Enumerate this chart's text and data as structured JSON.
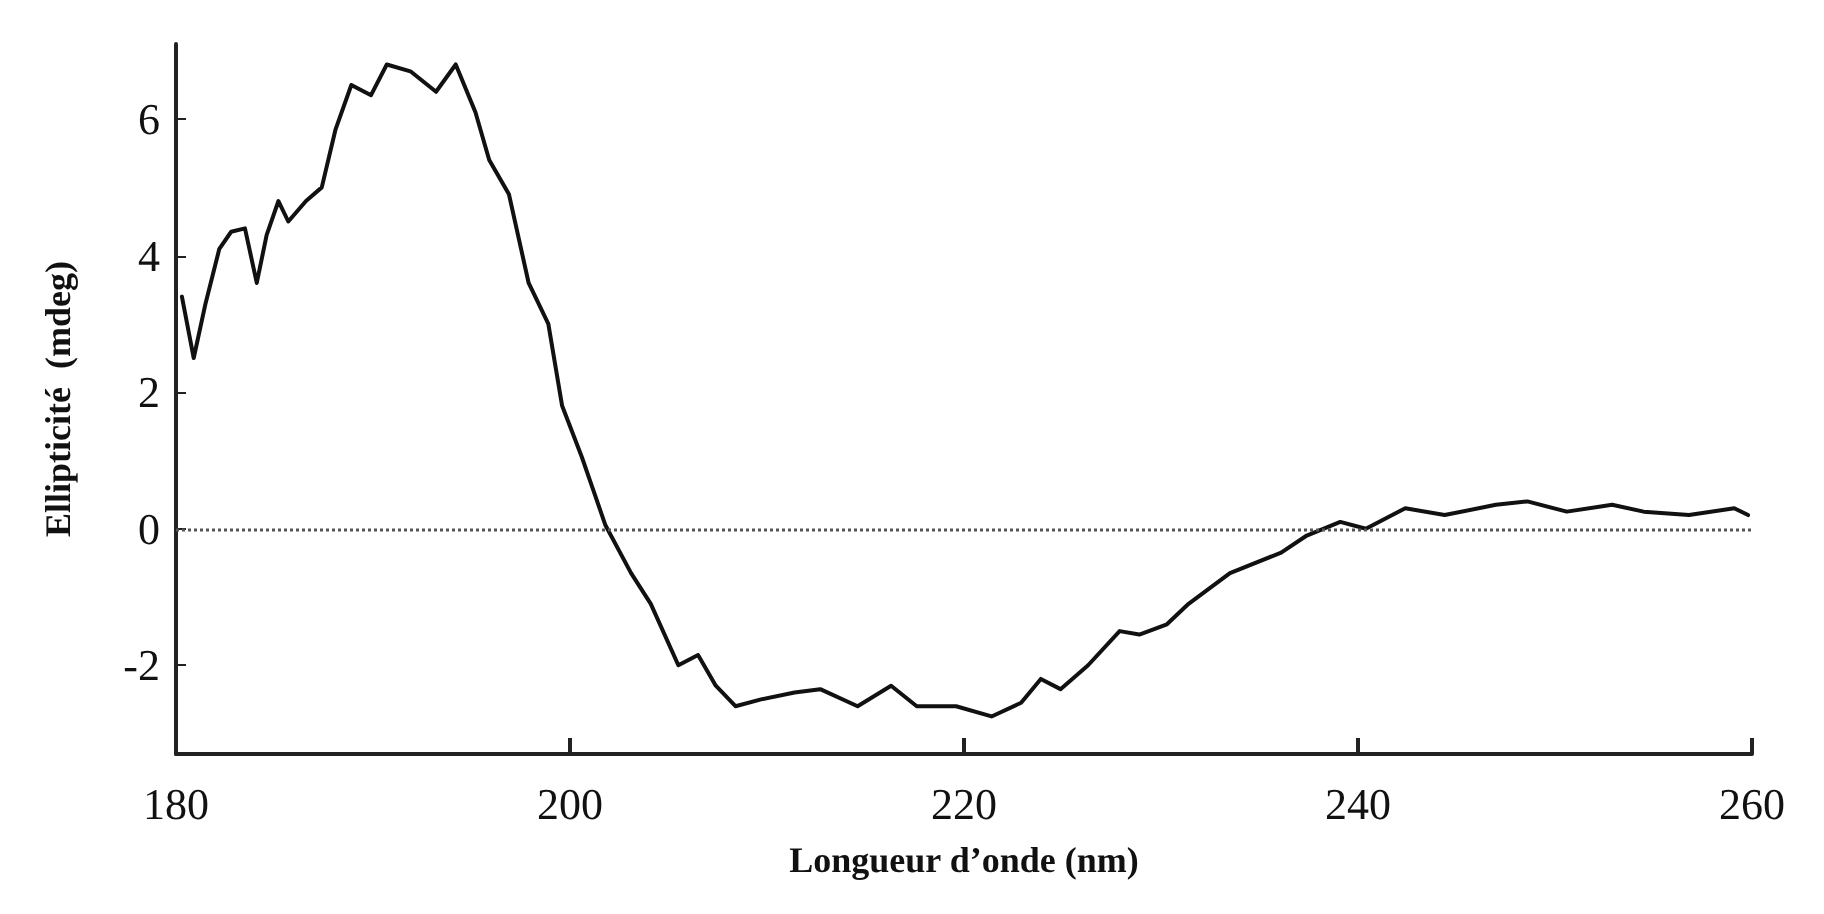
{
  "chart_data": {
    "type": "line",
    "xlabel": "Longueur d’onde (nm)",
    "ylabel": "Ellipticité  (mdeg)",
    "xlim": [
      180,
      260
    ],
    "xticks": [
      180,
      200,
      220,
      240,
      260
    ],
    "ylim": [
      -3.3,
      7.1
    ],
    "yticks": [
      -2,
      0,
      2,
      4,
      6
    ],
    "grid": false,
    "marker": "none",
    "line_style": "solid",
    "ref_lines": [
      {
        "axis": "y",
        "value": 0,
        "color": "#555555",
        "line_style": "dotted"
      }
    ],
    "series": [
      {
        "color": "#111111",
        "x": [
          180.3,
          180.9,
          181.5,
          182.2,
          182.8,
          183.5,
          184.1,
          184.6,
          185.2,
          185.7,
          186.6,
          187.4,
          188.1,
          188.9,
          189.9,
          190.7,
          191.9,
          193.2,
          194.2,
          195.2,
          195.9,
          196.9,
          197.9,
          198.9,
          199.6,
          200.6,
          201.2,
          201.8,
          203.1,
          204.1,
          205.5,
          206.5,
          207.4,
          208.4,
          209.7,
          211.4,
          212.7,
          214.6,
          216.3,
          217.6,
          219.6,
          221.4,
          222.9,
          223.9,
          224.9,
          226.3,
          227.9,
          228.9,
          230.3,
          231.4,
          233.5,
          236.1,
          237.4,
          239.1,
          240.4,
          242.4,
          244.4,
          247.0,
          248.6,
          250.6,
          252.9,
          254.5,
          256.8,
          259.1,
          259.8
        ],
        "values": [
          3.4,
          2.5,
          3.3,
          4.1,
          4.35,
          4.4,
          3.6,
          4.3,
          4.8,
          4.5,
          4.8,
          5.0,
          5.85,
          6.5,
          6.35,
          6.8,
          6.7,
          6.4,
          6.8,
          6.1,
          5.4,
          4.9,
          3.6,
          3.0,
          1.8,
          1.05,
          0.55,
          0.05,
          -0.65,
          -1.1,
          -2.0,
          -1.85,
          -2.3,
          -2.6,
          -2.5,
          -2.4,
          -2.35,
          -2.6,
          -2.3,
          -2.6,
          -2.6,
          -2.75,
          -2.55,
          -2.2,
          -2.35,
          -2.0,
          -1.5,
          -1.55,
          -1.4,
          -1.1,
          -0.65,
          -0.35,
          -0.1,
          0.1,
          0,
          0.3,
          0.2,
          0.35,
          0.4,
          0.25,
          0.35,
          0.25,
          0.2,
          0.3,
          0.2
        ]
      }
    ]
  }
}
